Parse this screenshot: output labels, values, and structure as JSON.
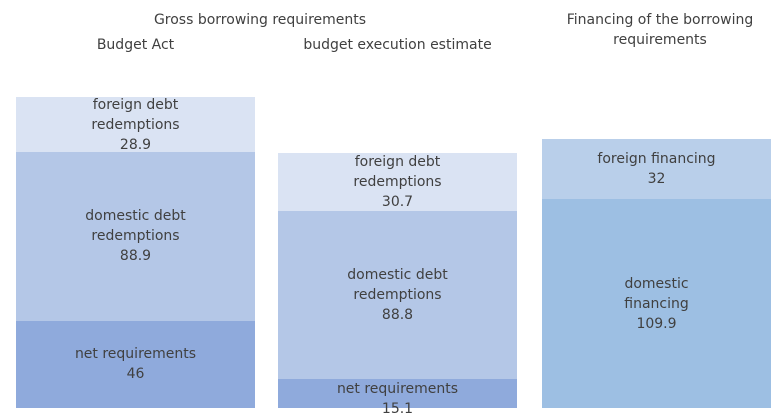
{
  "chart_data": {
    "type": "stacked_bar",
    "title": "Gross borrowing requirements",
    "financing_title": "Financing of the borrowing requirements",
    "ylim": [
      0,
      215
    ],
    "bars": [
      {
        "category": "Budget Act",
        "segments": [
          {
            "name": "net requirements",
            "value": 46.0,
            "color": "#8faadc"
          },
          {
            "name": "domestic debt redemptions",
            "value": 88.9,
            "color": "#b4c7e7"
          },
          {
            "name": "foreign debt redemptions",
            "value": 28.9,
            "color": "#dae3f3"
          }
        ]
      },
      {
        "category": "budget execution estimate",
        "segments": [
          {
            "name": "net requirements",
            "value": 15.1,
            "color": "#8faadc"
          },
          {
            "name": "domestic debt redemptions",
            "value": 88.8,
            "color": "#b4c7e7"
          },
          {
            "name": "foreign debt redemptions",
            "value": 30.7,
            "color": "#dae3f3"
          }
        ]
      },
      {
        "segments": [
          {
            "name": "domestic financing",
            "value": 109.9,
            "color": "#9dbfe3"
          },
          {
            "name": "foreign financing",
            "value": 32.0,
            "color": "#b9cfea"
          }
        ]
      }
    ]
  }
}
